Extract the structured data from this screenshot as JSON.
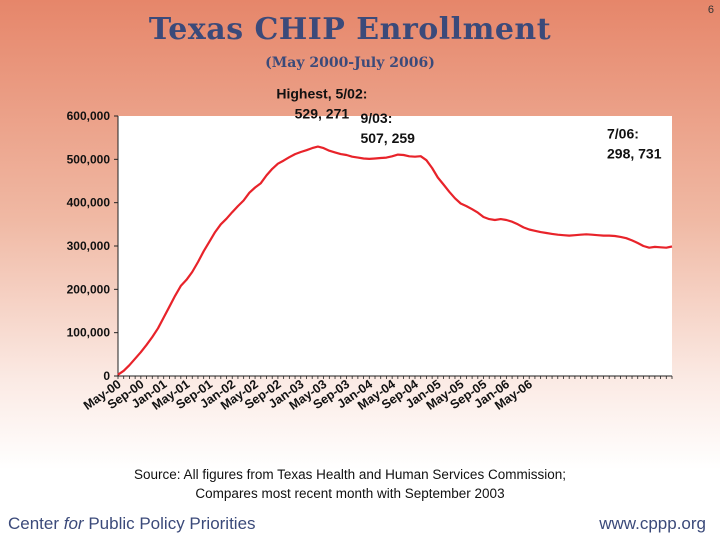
{
  "page_number": "6",
  "slide": {
    "title": "Texas CHIP Enrollment",
    "subtitle": "(May 2000-July 2006)",
    "source_line1": "Source: All figures from Texas Health and Human Services Commission;",
    "source_line2": "Compares most recent month with September 2003",
    "footer_left_prefix": "Center ",
    "footer_left_for": "for",
    "footer_left_suffix": " Public Policy Priorities",
    "footer_right": "www.cppp.org"
  },
  "chart_data": {
    "type": "line",
    "title": "Texas CHIP Enrollment",
    "xlabel": "",
    "ylabel": "",
    "ylim": [
      0,
      600000
    ],
    "y_ticks": [
      0,
      100000,
      200000,
      300000,
      400000,
      500000,
      600000
    ],
    "y_tick_labels": [
      "0",
      "100,000",
      "200,000",
      "300,000",
      "400,000",
      "500,000",
      "600,000"
    ],
    "x_tick_labels": [
      "May-00",
      "Sep-00",
      "Jan-01",
      "May-01",
      "Sep-01",
      "Jan-02",
      "May-02",
      "Sep-02",
      "Jan-03",
      "May-03",
      "Sep-03",
      "Jan-04",
      "May-04",
      "Sep-04",
      "Jan-05",
      "May-05",
      "Sep-05",
      "Jan-06",
      "May-06"
    ],
    "grid": false,
    "line_color": "#e8232a",
    "series": [
      {
        "values": [
          3000,
          12000,
          25000,
          40000,
          55000,
          72000,
          90000,
          110000,
          135000,
          160000,
          185000,
          208000,
          222000,
          240000,
          263000,
          288000,
          310000,
          332000,
          350000,
          363000,
          378000,
          392000,
          405000,
          423000,
          435000,
          445000,
          463000,
          478000,
          490000,
          497000,
          505000,
          512000,
          517000,
          521000,
          526000,
          529271,
          526000,
          520000,
          516000,
          512000,
          510000,
          506000,
          504000,
          502000,
          501000,
          502000,
          503000,
          504000,
          507000,
          511000,
          510000,
          507000,
          506000,
          507259,
          498000,
          480000,
          458000,
          442000,
          425000,
          410000,
          398000,
          392000,
          385000,
          377000,
          367000,
          362000,
          360000,
          362000,
          360000,
          356000,
          350000,
          343000,
          338000,
          335000,
          332000,
          330000,
          328000,
          326000,
          325000,
          324000,
          325000,
          326000,
          327000,
          326000,
          325000,
          324000,
          324000,
          323000,
          321000,
          318000,
          313000,
          307000,
          300000,
          296000,
          298000,
          297000,
          296000,
          298731
        ]
      }
    ],
    "annotations": [
      {
        "line1": "Highest, 5/02:",
        "line2": "529, 271"
      },
      {
        "line1": "9/03:",
        "line2": "507, 259"
      },
      {
        "line1": "7/06:",
        "line2": "298, 731"
      }
    ]
  }
}
